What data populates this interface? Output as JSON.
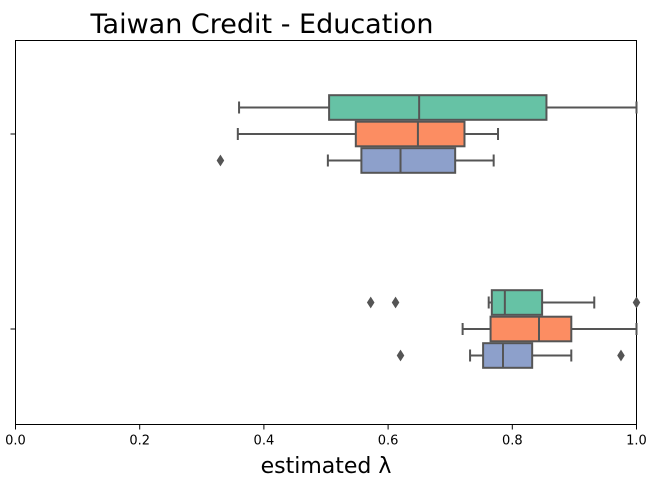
{
  "chart_data": {
    "type": "boxplot",
    "orientation": "horizontal",
    "title": "Taiwan Credit - Education",
    "xlabel": "estimated λ",
    "ylabel": "",
    "xlim": [
      0,
      1
    ],
    "xticks": [
      0.0,
      0.2,
      0.4,
      0.6,
      0.8,
      1.0
    ],
    "xtick_labels": [
      "0.0",
      "0.2",
      "0.4",
      "0.6",
      "0.8",
      "1.0"
    ],
    "grid": false,
    "legend": null,
    "colors": [
      "#66c2a5",
      "#fc8d62",
      "#8da0cb"
    ],
    "groups": [
      {
        "label": "",
        "boxes": [
          {
            "whisker_low": 0.36,
            "q1": 0.505,
            "median": 0.65,
            "q3": 0.855,
            "whisker_high": 1.0,
            "outliers": []
          },
          {
            "whisker_low": 0.358,
            "q1": 0.548,
            "median": 0.648,
            "q3": 0.723,
            "whisker_high": 0.777,
            "outliers": []
          },
          {
            "whisker_low": 0.503,
            "q1": 0.557,
            "median": 0.62,
            "q3": 0.708,
            "whisker_high": 0.77,
            "outliers": [
              0.33
            ]
          }
        ]
      },
      {
        "label": "",
        "boxes": [
          {
            "whisker_low": 0.762,
            "q1": 0.767,
            "median": 0.788,
            "q3": 0.848,
            "whisker_high": 0.932,
            "outliers": [
              0.572,
              0.612,
              1.0
            ]
          },
          {
            "whisker_low": 0.72,
            "q1": 0.765,
            "median": 0.843,
            "q3": 0.895,
            "whisker_high": 1.0,
            "outliers": []
          },
          {
            "whisker_low": 0.732,
            "q1": 0.753,
            "median": 0.785,
            "q3": 0.832,
            "whisker_high": 0.895,
            "outliers": [
              0.62,
              0.975
            ]
          }
        ]
      }
    ]
  }
}
